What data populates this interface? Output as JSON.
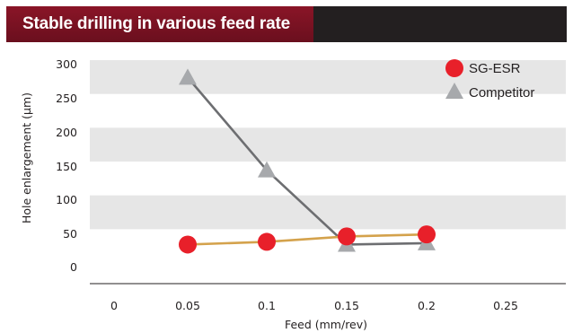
{
  "title": "Stable drilling in various feed rate",
  "colors": {
    "title_bg": "#231f20",
    "title_accent": "#7a1224",
    "band": "#e6e6e6",
    "sg_esr_line": "#d4a24c",
    "sg_esr_marker": "#e8202a",
    "competitor_line": "#6d6e71",
    "competitor_marker": "#a7a9ac"
  },
  "chart_data": {
    "type": "line",
    "xlabel": "Feed (mm/rev)",
    "ylabel": "Hole enlargement (µm)",
    "x_ticks": [
      "0",
      "0.05",
      "0.1",
      "0.15",
      "0.2",
      "0.25"
    ],
    "y_ticks": [
      "0",
      "50",
      "100",
      "150",
      "200",
      "250",
      "300"
    ],
    "xlim": [
      0,
      0.3
    ],
    "ylim": [
      0,
      300
    ],
    "grid": "alternating horizontal bands",
    "legend_position": "top-right",
    "series": [
      {
        "name": "SG-ESR",
        "marker": "circle",
        "x": [
          0.05,
          0.1,
          0.15,
          0.2
        ],
        "y": [
          18,
          22,
          30,
          33
        ]
      },
      {
        "name": "Competitor",
        "marker": "triangle",
        "x": [
          0.05,
          0.1,
          0.15,
          0.2
        ],
        "y": [
          265,
          128,
          18,
          20
        ]
      }
    ]
  }
}
